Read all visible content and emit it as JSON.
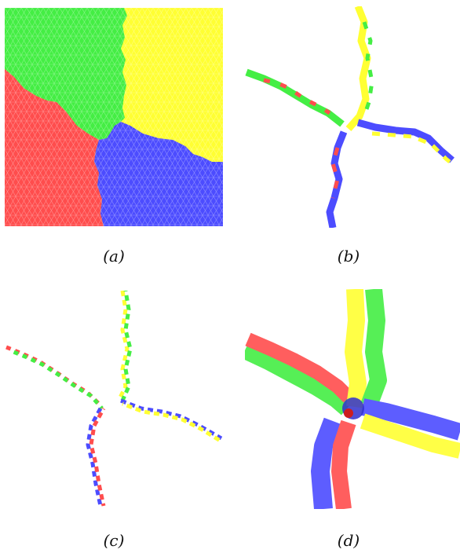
{
  "figure": {
    "panels": [
      {
        "id": "a",
        "caption": "(a)"
      },
      {
        "id": "b",
        "caption": "(b)"
      },
      {
        "id": "c",
        "caption": "(c)"
      },
      {
        "id": "d",
        "caption": "(d)"
      }
    ]
  },
  "colors": {
    "red": "#ff4d4d",
    "green": "#44ee44",
    "yellow": "#ffff33",
    "blue": "#4c4cff",
    "mesh_line": "#ffffff"
  }
}
